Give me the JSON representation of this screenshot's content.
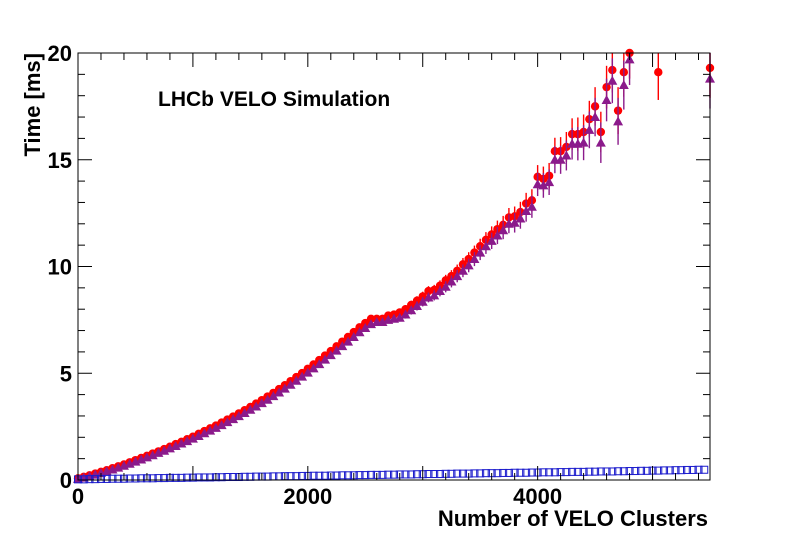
{
  "chart_data": {
    "type": "scatter",
    "title": "",
    "annotation": "LHCb VELO Simulation",
    "xlabel": "Number of VELO Clusters",
    "ylabel": "Time [ms]",
    "xlim": [
      0,
      5500
    ],
    "ylim": [
      0,
      20
    ],
    "x_ticks": [
      0,
      2000,
      4000
    ],
    "x_tick_labels": [
      "0",
      "2000",
      "4000"
    ],
    "y_ticks": [
      0,
      5,
      10,
      15,
      20
    ],
    "y_tick_labels": [
      "0",
      "5",
      "10",
      "15",
      "20"
    ],
    "grid": false,
    "colors": {
      "series_circle": "#ff0000",
      "series_triangle": "#8b1a8b",
      "series_square": "#1a1acc",
      "axes": "#000000"
    },
    "series": [
      {
        "name": "series_circle",
        "marker": "circle",
        "x": [
          0,
          50,
          100,
          150,
          200,
          250,
          300,
          350,
          400,
          450,
          500,
          550,
          600,
          650,
          700,
          750,
          800,
          850,
          900,
          950,
          1000,
          1050,
          1100,
          1150,
          1200,
          1250,
          1300,
          1350,
          1400,
          1450,
          1500,
          1550,
          1600,
          1650,
          1700,
          1750,
          1800,
          1850,
          1900,
          1950,
          2000,
          2050,
          2100,
          2150,
          2200,
          2250,
          2300,
          2350,
          2400,
          2450,
          2500,
          2550,
          2600,
          2650,
          2700,
          2750,
          2800,
          2850,
          2900,
          2950,
          3000,
          3050,
          3100,
          3150,
          3200,
          3250,
          3300,
          3350,
          3400,
          3450,
          3500,
          3550,
          3600,
          3650,
          3700,
          3750,
          3800,
          3850,
          3900,
          3950,
          4000,
          4050,
          4100,
          4150,
          4200,
          4250,
          4300,
          4350,
          4400,
          4450,
          4500,
          4550,
          4600,
          4650,
          4700,
          4750,
          4800,
          5050,
          5500
        ],
        "y": [
          0.08,
          0.15,
          0.22,
          0.3,
          0.38,
          0.46,
          0.55,
          0.64,
          0.73,
          0.83,
          0.93,
          1.03,
          1.13,
          1.24,
          1.34,
          1.45,
          1.56,
          1.68,
          1.79,
          1.91,
          2.03,
          2.16,
          2.29,
          2.42,
          2.55,
          2.69,
          2.83,
          2.97,
          3.12,
          3.27,
          3.42,
          3.58,
          3.74,
          3.91,
          4.08,
          4.26,
          4.44,
          4.63,
          4.82,
          5.01,
          5.21,
          5.41,
          5.62,
          5.83,
          6.04,
          6.26,
          6.48,
          6.7,
          6.93,
          7.15,
          7.35,
          7.55,
          7.55,
          7.55,
          7.7,
          7.75,
          7.85,
          8.0,
          8.2,
          8.4,
          8.6,
          8.85,
          8.9,
          9.1,
          9.35,
          9.55,
          9.8,
          10.1,
          10.35,
          10.65,
          10.95,
          11.25,
          11.5,
          11.75,
          11.95,
          12.3,
          12.35,
          12.55,
          12.95,
          13.1,
          14.2,
          14.1,
          14.25,
          15.4,
          15.4,
          15.6,
          16.2,
          16.2,
          16.3,
          16.9,
          17.5,
          16.3,
          18.4,
          19.2,
          17.3,
          19.1,
          20.0,
          19.1,
          19.3
        ],
        "yerr": [
          0.02,
          0.02,
          0.02,
          0.02,
          0.02,
          0.02,
          0.02,
          0.02,
          0.02,
          0.02,
          0.03,
          0.03,
          0.03,
          0.03,
          0.03,
          0.03,
          0.03,
          0.03,
          0.03,
          0.03,
          0.04,
          0.04,
          0.04,
          0.04,
          0.04,
          0.04,
          0.05,
          0.05,
          0.05,
          0.05,
          0.05,
          0.06,
          0.06,
          0.06,
          0.06,
          0.07,
          0.07,
          0.07,
          0.08,
          0.08,
          0.08,
          0.09,
          0.09,
          0.1,
          0.1,
          0.11,
          0.11,
          0.12,
          0.12,
          0.13,
          0.13,
          0.14,
          0.15,
          0.15,
          0.16,
          0.17,
          0.18,
          0.19,
          0.2,
          0.21,
          0.22,
          0.23,
          0.24,
          0.25,
          0.26,
          0.28,
          0.29,
          0.3,
          0.32,
          0.33,
          0.35,
          0.36,
          0.38,
          0.4,
          0.42,
          0.44,
          0.46,
          0.48,
          0.5,
          0.52,
          0.55,
          0.58,
          0.6,
          0.63,
          0.66,
          0.7,
          0.74,
          0.78,
          0.82,
          0.86,
          0.9,
          0.95,
          1.0,
          1.05,
          1.1,
          1.15,
          1.2,
          1.3,
          1.4
        ]
      },
      {
        "name": "series_triangle",
        "marker": "triangle",
        "x": [
          0,
          50,
          100,
          150,
          200,
          250,
          300,
          350,
          400,
          450,
          500,
          550,
          600,
          650,
          700,
          750,
          800,
          850,
          900,
          950,
          1000,
          1050,
          1100,
          1150,
          1200,
          1250,
          1300,
          1350,
          1400,
          1450,
          1500,
          1550,
          1600,
          1650,
          1700,
          1750,
          1800,
          1850,
          1900,
          1950,
          2000,
          2050,
          2100,
          2150,
          2200,
          2250,
          2300,
          2350,
          2400,
          2450,
          2500,
          2550,
          2600,
          2650,
          2700,
          2750,
          2800,
          2850,
          2900,
          2950,
          3000,
          3050,
          3100,
          3150,
          3200,
          3250,
          3300,
          3350,
          3400,
          3450,
          3500,
          3550,
          3600,
          3650,
          3700,
          3750,
          3800,
          3850,
          3900,
          3950,
          4000,
          4050,
          4100,
          4150,
          4200,
          4250,
          4300,
          4350,
          4400,
          4450,
          4500,
          4550,
          4600,
          4650,
          4700,
          4750,
          4800,
          5500
        ],
        "y": [
          0.05,
          0.11,
          0.18,
          0.25,
          0.33,
          0.41,
          0.49,
          0.58,
          0.67,
          0.76,
          0.86,
          0.96,
          1.06,
          1.16,
          1.27,
          1.37,
          1.48,
          1.59,
          1.71,
          1.82,
          1.94,
          2.06,
          2.19,
          2.31,
          2.44,
          2.57,
          2.71,
          2.85,
          2.99,
          3.14,
          3.29,
          3.44,
          3.6,
          3.76,
          3.93,
          4.1,
          4.28,
          4.46,
          4.65,
          4.84,
          5.03,
          5.23,
          5.43,
          5.64,
          5.85,
          6.06,
          6.27,
          6.48,
          6.7,
          6.92,
          7.12,
          7.3,
          7.4,
          7.4,
          7.5,
          7.55,
          7.6,
          7.75,
          7.95,
          8.15,
          8.35,
          8.55,
          8.65,
          8.85,
          9.05,
          9.3,
          9.55,
          9.8,
          10.05,
          10.35,
          10.65,
          10.95,
          11.2,
          11.45,
          11.7,
          12.0,
          12.05,
          12.25,
          12.6,
          12.8,
          13.85,
          13.8,
          13.95,
          15.0,
          15.0,
          15.2,
          15.75,
          15.75,
          15.8,
          16.4,
          17.0,
          15.8,
          17.8,
          18.7,
          16.8,
          18.5,
          19.7,
          18.8
        ],
        "yerr": [
          0.02,
          0.02,
          0.02,
          0.02,
          0.02,
          0.02,
          0.02,
          0.02,
          0.02,
          0.02,
          0.03,
          0.03,
          0.03,
          0.03,
          0.03,
          0.03,
          0.03,
          0.03,
          0.03,
          0.03,
          0.04,
          0.04,
          0.04,
          0.04,
          0.04,
          0.04,
          0.05,
          0.05,
          0.05,
          0.05,
          0.05,
          0.06,
          0.06,
          0.06,
          0.06,
          0.07,
          0.07,
          0.07,
          0.08,
          0.08,
          0.08,
          0.09,
          0.09,
          0.1,
          0.1,
          0.11,
          0.11,
          0.12,
          0.12,
          0.13,
          0.13,
          0.14,
          0.15,
          0.15,
          0.16,
          0.17,
          0.18,
          0.19,
          0.2,
          0.21,
          0.22,
          0.23,
          0.24,
          0.25,
          0.26,
          0.28,
          0.29,
          0.3,
          0.32,
          0.33,
          0.35,
          0.36,
          0.38,
          0.4,
          0.42,
          0.44,
          0.46,
          0.48,
          0.5,
          0.52,
          0.55,
          0.58,
          0.6,
          0.63,
          0.66,
          0.7,
          0.74,
          0.78,
          0.82,
          0.86,
          0.9,
          0.95,
          1.0,
          1.05,
          1.1,
          1.15,
          1.2,
          1.4
        ]
      },
      {
        "name": "series_square",
        "marker": "open-square",
        "x": [
          0,
          50,
          100,
          150,
          200,
          250,
          300,
          350,
          400,
          450,
          500,
          550,
          600,
          650,
          700,
          750,
          800,
          850,
          900,
          950,
          1000,
          1050,
          1100,
          1150,
          1200,
          1250,
          1300,
          1350,
          1400,
          1450,
          1500,
          1550,
          1600,
          1650,
          1700,
          1750,
          1800,
          1850,
          1900,
          1950,
          2000,
          2050,
          2100,
          2150,
          2200,
          2250,
          2300,
          2350,
          2400,
          2450,
          2500,
          2550,
          2600,
          2650,
          2700,
          2750,
          2800,
          2850,
          2900,
          2950,
          3000,
          3050,
          3100,
          3150,
          3200,
          3250,
          3300,
          3350,
          3400,
          3450,
          3500,
          3550,
          3600,
          3650,
          3700,
          3750,
          3800,
          3850,
          3900,
          3950,
          4000,
          4050,
          4100,
          4150,
          4200,
          4250,
          4300,
          4350,
          4400,
          4450,
          4500,
          4550,
          4600,
          4650,
          4700,
          4750,
          4800,
          4850,
          4900,
          4950,
          5000,
          5050,
          5100,
          5150,
          5200,
          5250,
          5300,
          5350,
          5400,
          5450
        ],
        "y": [
          0.03,
          0.03,
          0.04,
          0.04,
          0.05,
          0.05,
          0.06,
          0.06,
          0.06,
          0.07,
          0.07,
          0.08,
          0.08,
          0.08,
          0.09,
          0.09,
          0.1,
          0.1,
          0.1,
          0.11,
          0.11,
          0.12,
          0.12,
          0.12,
          0.13,
          0.13,
          0.14,
          0.14,
          0.14,
          0.15,
          0.15,
          0.16,
          0.16,
          0.16,
          0.17,
          0.17,
          0.18,
          0.18,
          0.18,
          0.19,
          0.19,
          0.2,
          0.2,
          0.2,
          0.21,
          0.21,
          0.22,
          0.22,
          0.22,
          0.23,
          0.23,
          0.24,
          0.24,
          0.24,
          0.25,
          0.25,
          0.26,
          0.26,
          0.26,
          0.27,
          0.27,
          0.28,
          0.28,
          0.28,
          0.29,
          0.29,
          0.3,
          0.3,
          0.3,
          0.31,
          0.31,
          0.32,
          0.32,
          0.32,
          0.33,
          0.33,
          0.34,
          0.34,
          0.34,
          0.35,
          0.35,
          0.36,
          0.36,
          0.36,
          0.37,
          0.37,
          0.38,
          0.38,
          0.38,
          0.39,
          0.39,
          0.4,
          0.4,
          0.4,
          0.41,
          0.41,
          0.42,
          0.42,
          0.43,
          0.43,
          0.44,
          0.44,
          0.45,
          0.45,
          0.46,
          0.46,
          0.47,
          0.47,
          0.48,
          0.48
        ]
      }
    ]
  }
}
